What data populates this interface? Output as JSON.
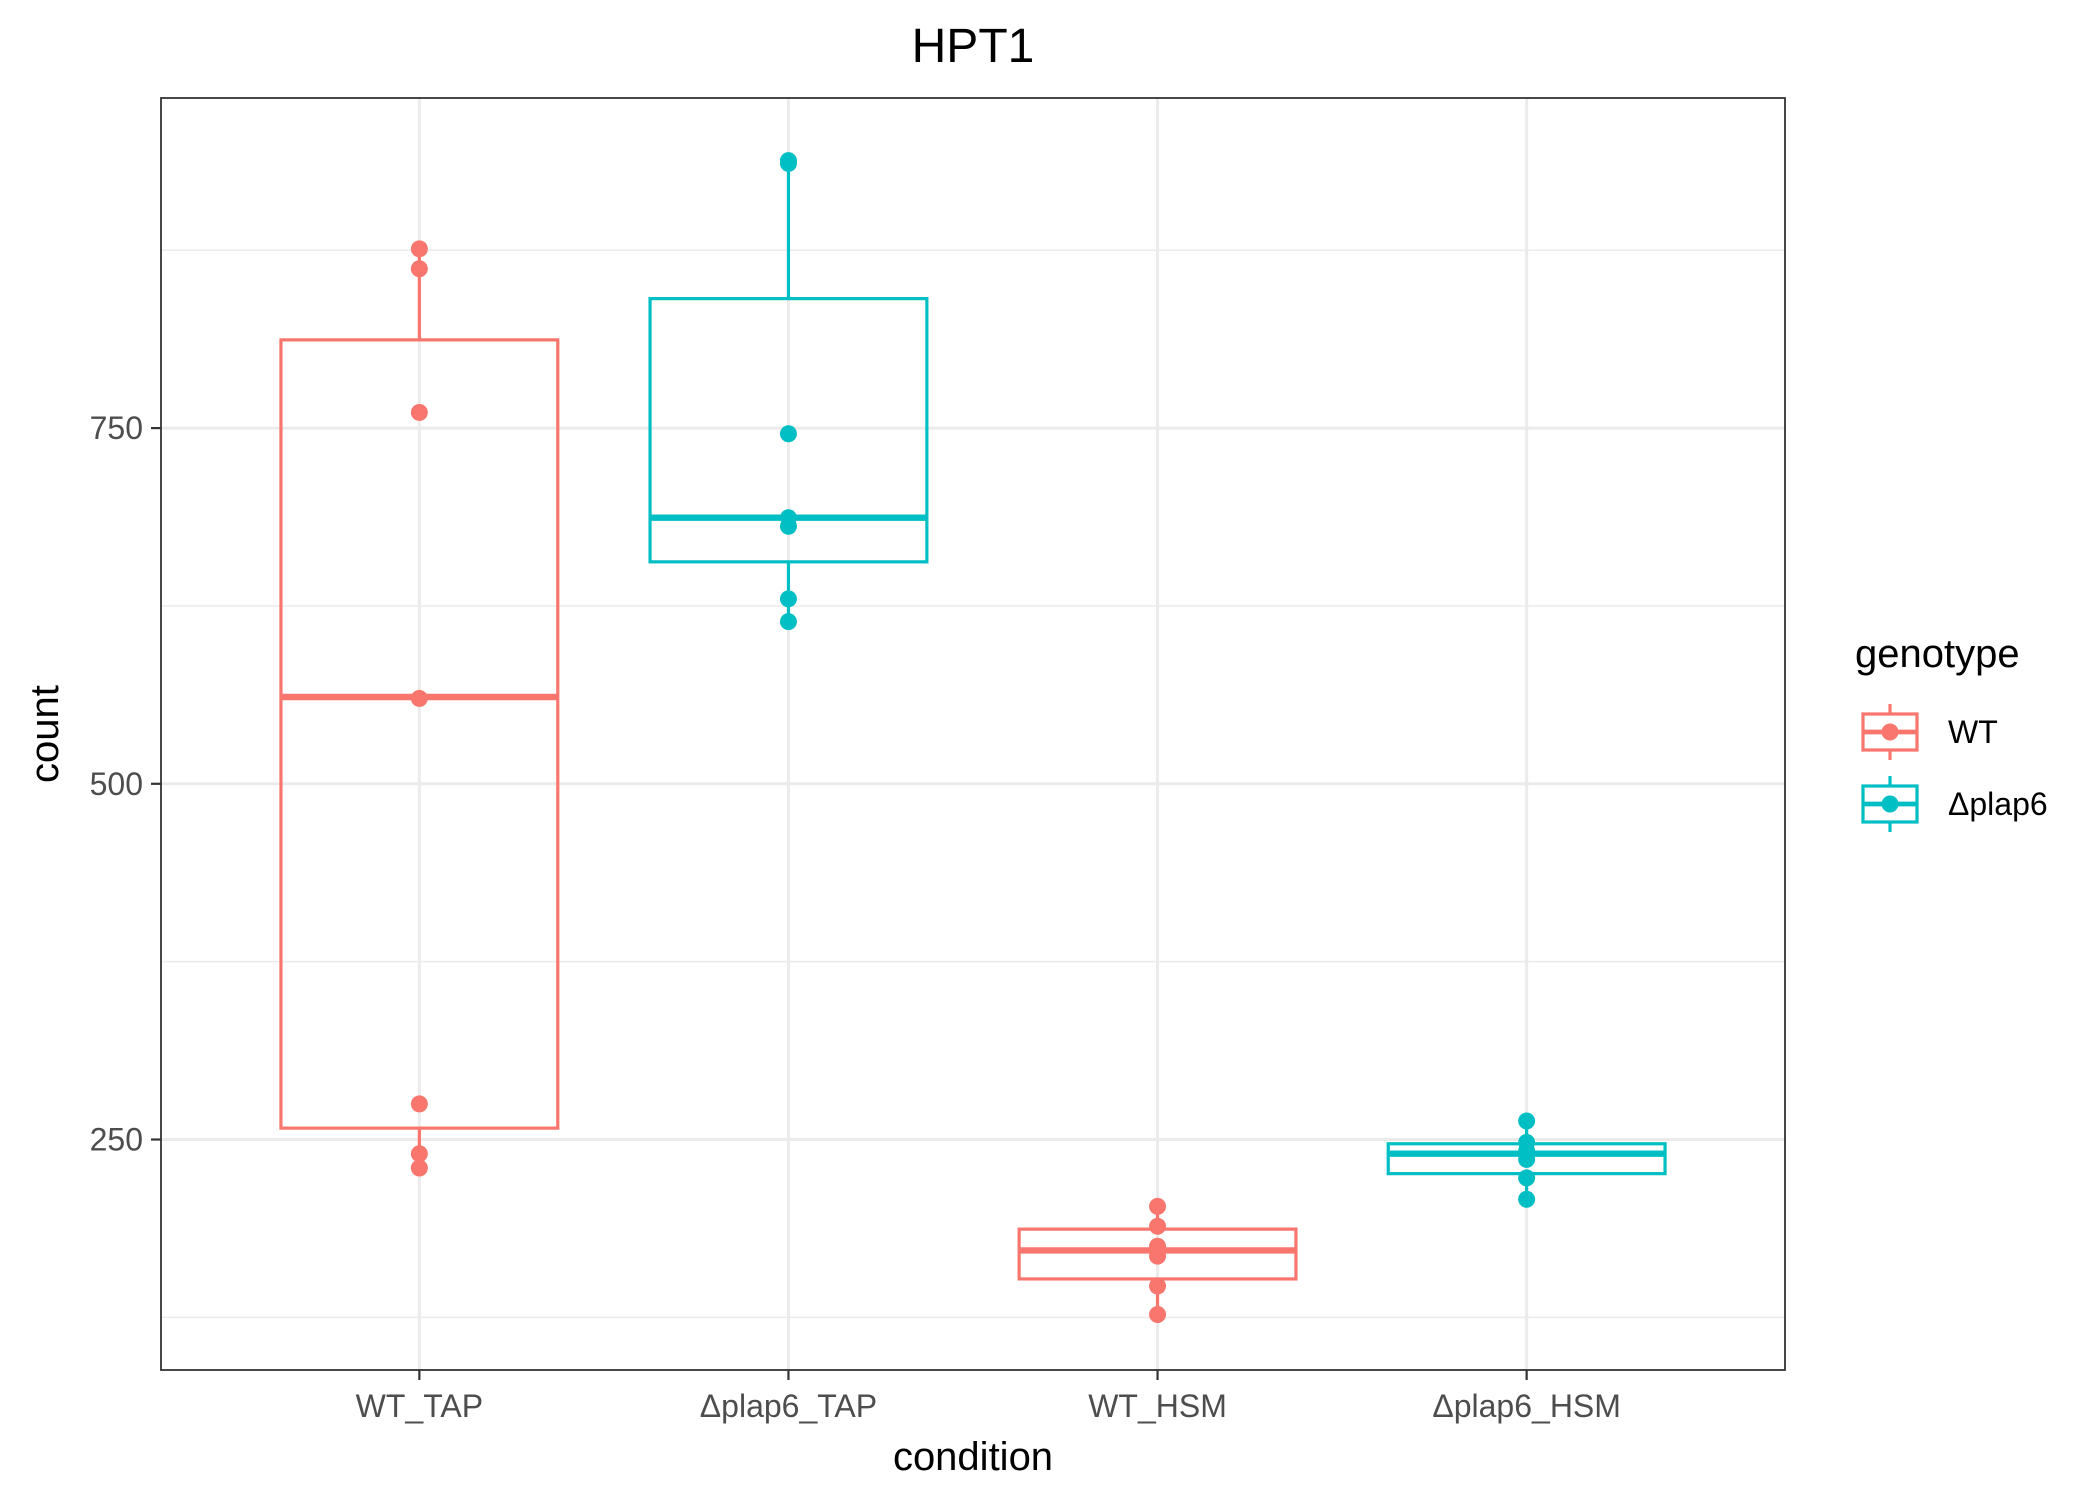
{
  "chart_data": {
    "type": "box",
    "title": "HPT1",
    "xlabel": "condition",
    "ylabel": "count",
    "categories": [
      "WT_TAP",
      "Δplap6_TAP",
      "WT_HSM",
      "Δplap6_HSM"
    ],
    "ylim": [
      88,
      982
    ],
    "yticks": [
      250,
      500,
      750
    ],
    "grid": true,
    "legend": {
      "title": "genotype",
      "position": "right",
      "entries": [
        {
          "label": "WT",
          "color": "#F8766D"
        },
        {
          "label": "Δplap6",
          "color": "#00BFC4"
        }
      ]
    },
    "boxes": [
      {
        "category": "WT_TAP",
        "genotype": "WT",
        "color": "#F8766D",
        "lower_whisker": 230,
        "q1": 258,
        "median": 561,
        "q3": 812,
        "upper_whisker": 876,
        "points": [
          876,
          862,
          761,
          560,
          275,
          240,
          230
        ]
      },
      {
        "category": "Δplap6_TAP",
        "genotype": "Δplap6",
        "color": "#00BFC4",
        "lower_whisker": 614,
        "q1": 656,
        "median": 687,
        "q3": 841,
        "upper_whisker": 938,
        "points": [
          938,
          936,
          746,
          687,
          681,
          630,
          614
        ]
      },
      {
        "category": "WT_HSM",
        "genotype": "WT",
        "color": "#F8766D",
        "lower_whisker": 127,
        "q1": 152,
        "median": 172,
        "q3": 187,
        "upper_whisker": 203,
        "points": [
          203,
          189,
          175,
          168,
          147,
          127
        ]
      },
      {
        "category": "Δplap6_HSM",
        "genotype": "Δplap6",
        "color": "#00BFC4",
        "lower_whisker": 208,
        "q1": 226,
        "median": 240,
        "q3": 247,
        "upper_whisker": 263,
        "points": [
          263,
          248,
          242,
          236,
          223,
          208
        ]
      }
    ]
  }
}
